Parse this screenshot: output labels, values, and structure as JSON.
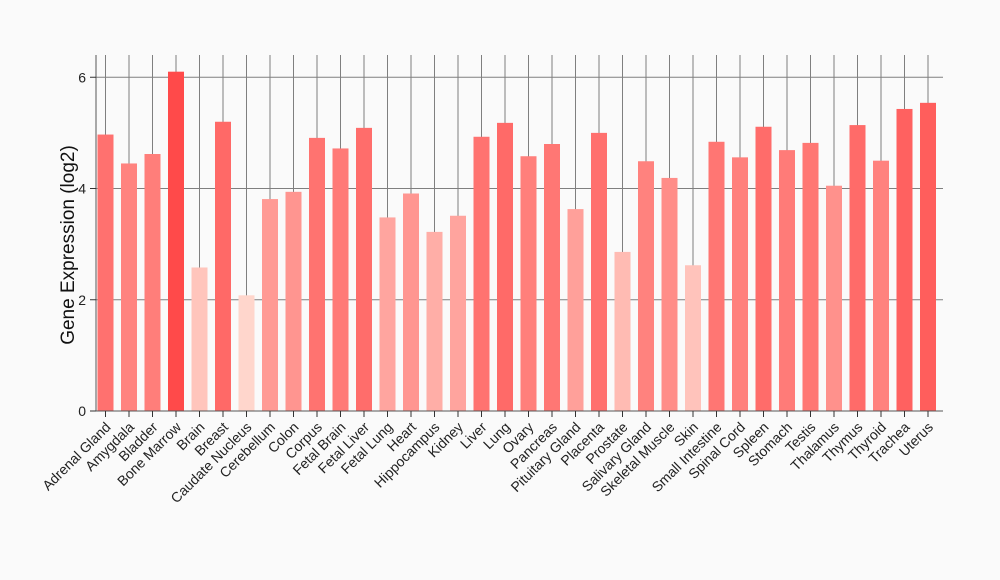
{
  "chart_data": {
    "type": "bar",
    "title": "",
    "xlabel": "",
    "ylabel": "Gene Expression (log2)",
    "ylim": [
      0,
      6.4
    ],
    "yticks": [
      0,
      2,
      4,
      6
    ],
    "grid": true,
    "categories": [
      "Adrenal Gland",
      "Amygdala",
      "Bladder",
      "Bone Marrow",
      "Brain",
      "Breast",
      "Caudate Nucleus",
      "Cerebellum",
      "Colon",
      "Corpus",
      "Fetal Brain",
      "Fetal Liver",
      "Fetal Lung",
      "Heart",
      "Hippocampus",
      "Kidney",
      "Liver",
      "Lung",
      "Ovary",
      "Pancreas",
      "Pituitary Gland",
      "Placenta",
      "Prostate",
      "Salivary Gland",
      "Skeletal Muscle",
      "Skin",
      "Small Intestine",
      "Spinal Cord",
      "Spleen",
      "Stomach",
      "Testis",
      "Thalamus",
      "Thymus",
      "Thyroid",
      "Trachea",
      "Uterus"
    ],
    "values": [
      4.97,
      4.45,
      4.62,
      6.1,
      2.58,
      5.2,
      2.08,
      3.81,
      3.94,
      4.91,
      4.72,
      5.09,
      3.48,
      3.91,
      3.22,
      3.51,
      4.93,
      5.18,
      4.58,
      4.8,
      3.63,
      5.0,
      2.86,
      4.49,
      4.19,
      2.62,
      4.84,
      4.56,
      5.11,
      4.69,
      4.82,
      4.05,
      5.14,
      4.5,
      5.43,
      5.54
    ]
  }
}
